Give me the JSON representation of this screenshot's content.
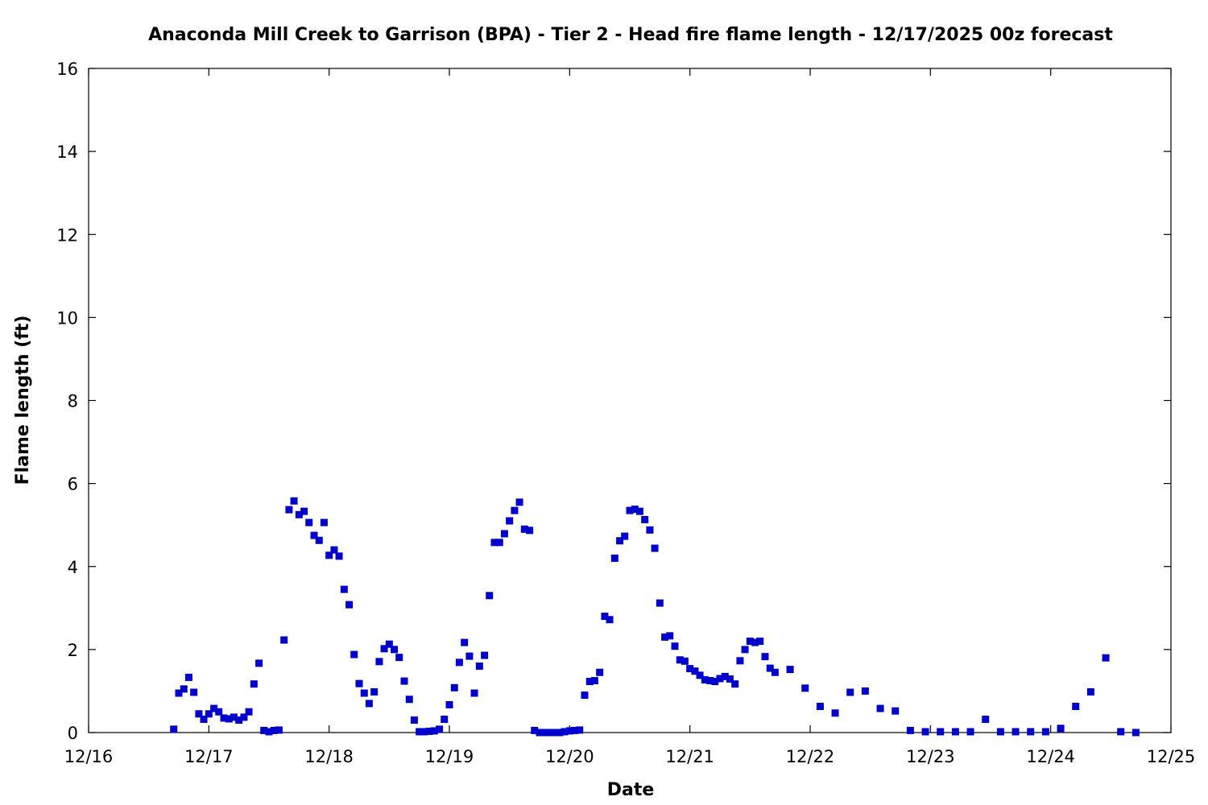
{
  "chart_data": {
    "type": "scatter",
    "title": "Anaconda Mill Creek to Garrison (BPA) - Tier 2 - Head fire flame length - 12/17/2025 00z forecast",
    "xlabel": "Date",
    "ylabel": "Flame length (ft)",
    "xlim": [
      0,
      9
    ],
    "ylim": [
      0,
      16
    ],
    "x_ticks": [
      0,
      1,
      2,
      3,
      4,
      5,
      6,
      7,
      8,
      9
    ],
    "x_tick_labels": [
      "12/16",
      "12/17",
      "12/18",
      "12/19",
      "12/20",
      "12/21",
      "12/22",
      "12/23",
      "12/24",
      "12/25"
    ],
    "y_ticks": [
      0,
      2,
      4,
      6,
      8,
      10,
      12,
      14,
      16
    ],
    "y_tick_labels": [
      "0",
      "2",
      "4",
      "6",
      "8",
      "10",
      "12",
      "14",
      "16"
    ],
    "grid": false,
    "legend": "none",
    "marker_color": "#0000cc",
    "x_unit_note": "x values in days after 12/16 00:00",
    "x": [
      0.708,
      0.75,
      0.792,
      0.833,
      0.875,
      0.917,
      0.958,
      1.0,
      1.042,
      1.083,
      1.125,
      1.167,
      1.208,
      1.25,
      1.292,
      1.333,
      1.375,
      1.417,
      1.458,
      1.5,
      1.542,
      1.583,
      1.625,
      1.667,
      1.708,
      1.75,
      1.792,
      1.833,
      1.875,
      1.917,
      1.958,
      2.0,
      2.042,
      2.083,
      2.125,
      2.167,
      2.208,
      2.25,
      2.292,
      2.333,
      2.375,
      2.417,
      2.458,
      2.5,
      2.542,
      2.583,
      2.625,
      2.667,
      2.708,
      2.75,
      2.792,
      2.833,
      2.875,
      2.917,
      2.958,
      3.0,
      3.042,
      3.083,
      3.125,
      3.167,
      3.208,
      3.25,
      3.292,
      3.333,
      3.375,
      3.417,
      3.458,
      3.5,
      3.542,
      3.583,
      3.625,
      3.667,
      3.708,
      3.75,
      3.792,
      3.833,
      3.875,
      3.917,
      3.958,
      4.0,
      4.042,
      4.083,
      4.125,
      4.167,
      4.208,
      4.25,
      4.292,
      4.333,
      4.375,
      4.417,
      4.458,
      4.5,
      4.542,
      4.583,
      4.625,
      4.667,
      4.708,
      4.75,
      4.792,
      4.833,
      4.875,
      4.917,
      4.958,
      5.0,
      5.042,
      5.083,
      5.125,
      5.167,
      5.208,
      5.25,
      5.292,
      5.333,
      5.375,
      5.417,
      5.458,
      5.5,
      5.542,
      5.583,
      5.625,
      5.667,
      5.708,
      5.833,
      5.958,
      6.083,
      6.208,
      6.333,
      6.458,
      6.583,
      6.708,
      6.833,
      6.958,
      7.083,
      7.208,
      7.333,
      7.458,
      7.583,
      7.708,
      7.833,
      7.958,
      8.083,
      8.208,
      8.333,
      8.458,
      8.583,
      8.708
    ],
    "y": [
      0.08,
      0.95,
      1.05,
      1.33,
      0.97,
      0.45,
      0.32,
      0.45,
      0.58,
      0.5,
      0.35,
      0.33,
      0.37,
      0.3,
      0.37,
      0.5,
      1.17,
      1.67,
      0.05,
      0.02,
      0.05,
      0.06,
      2.23,
      5.37,
      5.58,
      5.25,
      5.33,
      5.06,
      4.75,
      4.63,
      5.06,
      4.27,
      4.4,
      4.25,
      3.45,
      3.08,
      1.88,
      1.18,
      0.95,
      0.7,
      0.98,
      1.71,
      2.02,
      2.13,
      2.0,
      1.81,
      1.24,
      0.8,
      0.3,
      0.02,
      0.02,
      0.03,
      0.04,
      0.08,
      0.32,
      0.67,
      1.08,
      1.69,
      2.17,
      1.84,
      0.95,
      1.6,
      1.86,
      3.3,
      4.58,
      4.58,
      4.79,
      5.1,
      5.35,
      5.55,
      4.9,
      4.87,
      0.05,
      0.0,
      0.0,
      0.0,
      0.0,
      0.0,
      0.02,
      0.04,
      0.05,
      0.06,
      0.9,
      1.23,
      1.25,
      1.45,
      2.8,
      2.72,
      4.2,
      4.62,
      4.73,
      5.35,
      5.38,
      5.33,
      5.13,
      4.88,
      4.44,
      3.12,
      2.3,
      2.33,
      2.08,
      1.75,
      1.72,
      1.54,
      1.48,
      1.38,
      1.27,
      1.25,
      1.23,
      1.3,
      1.35,
      1.29,
      1.17,
      1.73,
      2.0,
      2.2,
      2.17,
      2.2,
      1.83,
      1.55,
      1.45,
      1.52,
      1.07,
      0.63,
      0.47,
      0.97,
      1.0,
      0.58,
      0.52,
      0.05,
      0.02,
      0.02,
      0.02,
      0.02,
      0.32,
      0.02,
      0.02,
      0.02,
      0.02,
      0.1,
      0.63,
      0.98,
      1.8,
      0.02,
      0.0
    ]
  }
}
